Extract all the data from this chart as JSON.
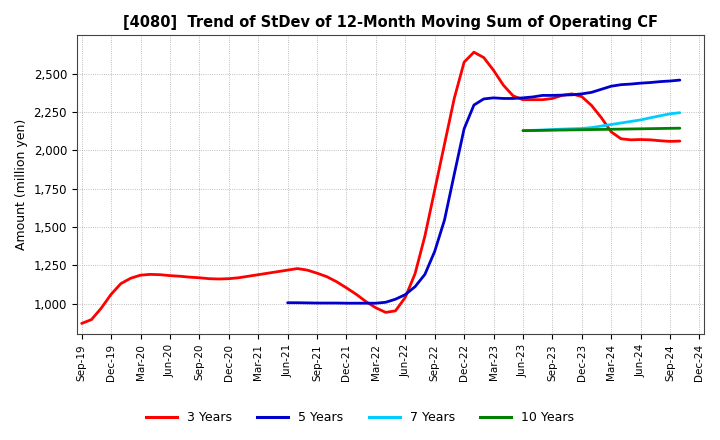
{
  "title": "[4080]  Trend of StDev of 12-Month Moving Sum of Operating CF",
  "ylabel": "Amount (million yen)",
  "background_color": "#ffffff",
  "plot_background_color": "#ffffff",
  "grid_color": "#aaaaaa",
  "ylim": [
    800,
    2750
  ],
  "yticks": [
    1000,
    1250,
    1500,
    1750,
    2000,
    2250,
    2500
  ],
  "series": {
    "3 Years": {
      "color": "#ff0000",
      "linewidth": 2.0,
      "x": [
        0,
        1,
        2,
        3,
        4,
        5,
        6,
        7,
        8,
        9,
        10,
        11,
        12,
        13,
        14,
        15,
        16,
        17,
        18,
        19,
        20,
        21,
        22,
        23,
        24,
        25,
        26,
        27,
        28,
        29,
        30,
        31,
        32,
        33,
        34,
        35,
        36,
        37,
        38,
        39,
        40,
        41,
        42,
        43,
        44,
        45,
        46,
        47,
        48,
        49,
        50,
        51,
        52,
        53,
        54,
        55,
        56,
        57,
        58,
        59,
        60,
        61
      ],
      "y": [
        870,
        895,
        970,
        1060,
        1130,
        1165,
        1185,
        1190,
        1188,
        1182,
        1178,
        1172,
        1168,
        1162,
        1160,
        1162,
        1168,
        1178,
        1188,
        1198,
        1208,
        1218,
        1228,
        1218,
        1198,
        1175,
        1142,
        1102,
        1060,
        1012,
        972,
        942,
        952,
        1040,
        1195,
        1440,
        1740,
        2040,
        2340,
        2575,
        2640,
        2605,
        2522,
        2425,
        2355,
        2330,
        2330,
        2330,
        2338,
        2358,
        2368,
        2350,
        2292,
        2212,
        2120,
        2075,
        2068,
        2070,
        2068,
        2062,
        2058,
        2060
      ]
    },
    "5 Years": {
      "color": "#0000cc",
      "linewidth": 2.0,
      "x": [
        21,
        22,
        23,
        24,
        25,
        26,
        27,
        28,
        29,
        30,
        31,
        32,
        33,
        34,
        35,
        36,
        37,
        38,
        39,
        40,
        41,
        42,
        43,
        44,
        45,
        46,
        47,
        48,
        49,
        50,
        51,
        52,
        53,
        54,
        55,
        56,
        57,
        58,
        59,
        60,
        61
      ],
      "y": [
        1005,
        1005,
        1004,
        1003,
        1003,
        1003,
        1002,
        1002,
        1002,
        1002,
        1008,
        1028,
        1058,
        1110,
        1190,
        1340,
        1545,
        1845,
        2140,
        2295,
        2335,
        2342,
        2338,
        2338,
        2342,
        2348,
        2358,
        2358,
        2360,
        2362,
        2368,
        2378,
        2398,
        2418,
        2428,
        2432,
        2438,
        2442,
        2448,
        2452,
        2458
      ]
    },
    "7 Years": {
      "color": "#00ccff",
      "linewidth": 2.0,
      "x": [
        45,
        46,
        47,
        48,
        49,
        50,
        51,
        52,
        53,
        54,
        55,
        56,
        57,
        58,
        59,
        60,
        61
      ],
      "y": [
        2128,
        2130,
        2132,
        2135,
        2138,
        2140,
        2142,
        2148,
        2158,
        2168,
        2178,
        2188,
        2198,
        2212,
        2225,
        2238,
        2245
      ]
    },
    "10 Years": {
      "color": "#008000",
      "linewidth": 2.0,
      "x": [
        45,
        46,
        47,
        48,
        49,
        50,
        51,
        52,
        53,
        54,
        55,
        56,
        57,
        58,
        59,
        60,
        61
      ],
      "y": [
        2128,
        2129,
        2130,
        2131,
        2132,
        2133,
        2134,
        2135,
        2136,
        2137,
        2138,
        2139,
        2140,
        2141,
        2142,
        2143,
        2144
      ]
    }
  },
  "xtick_labels": [
    "Sep-19",
    "Dec-19",
    "Mar-20",
    "Jun-20",
    "Sep-20",
    "Dec-20",
    "Mar-21",
    "Jun-21",
    "Sep-21",
    "Dec-21",
    "Mar-22",
    "Jun-22",
    "Sep-22",
    "Dec-22",
    "Mar-23",
    "Jun-23",
    "Sep-23",
    "Dec-23",
    "Mar-24",
    "Jun-24",
    "Sep-24",
    "Dec-24"
  ],
  "xtick_positions": [
    0,
    3,
    6,
    9,
    12,
    15,
    18,
    21,
    24,
    27,
    30,
    33,
    36,
    39,
    42,
    45,
    48,
    51,
    54,
    57,
    60,
    63
  ],
  "legend": {
    "labels": [
      "3 Years",
      "5 Years",
      "7 Years",
      "10 Years"
    ],
    "colors": [
      "#ff0000",
      "#0000cc",
      "#00ccff",
      "#008000"
    ]
  }
}
